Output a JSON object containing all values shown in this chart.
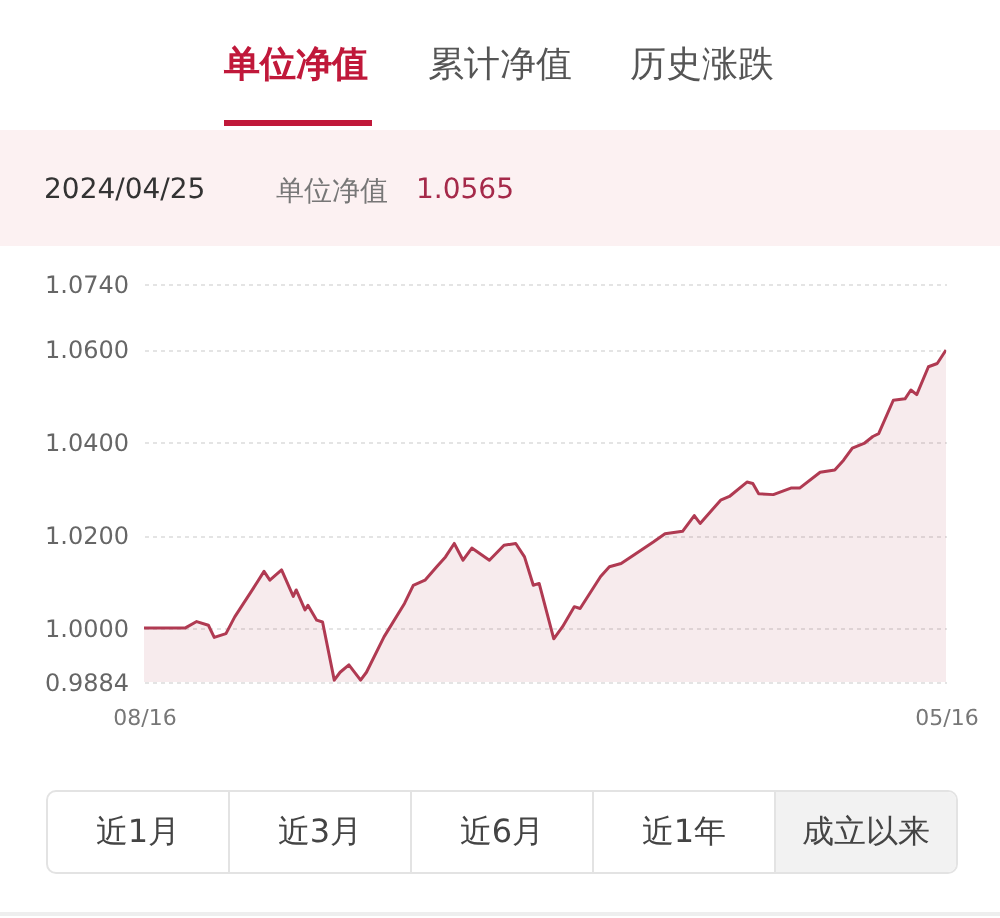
{
  "chart_data": {
    "type": "area",
    "annotations": [
      "单位净值",
      "累计净值",
      "历史涨跌",
      "2024/04/25",
      "单位净值",
      "1.0565",
      "近1月",
      "近3月",
      "近6月",
      "近1年",
      "成立以来"
    ],
    "x": [
      "2023-08-16",
      "2023-08-30",
      "2023-09-03",
      "2023-09-07",
      "2023-09-09",
      "2023-09-13",
      "2023-09-16",
      "2023-09-22",
      "2023-09-26",
      "2023-09-28",
      "2023-10-02",
      "2023-10-06",
      "2023-10-07",
      "2023-10-10",
      "2023-10-11",
      "2023-10-14",
      "2023-10-16",
      "2023-10-20",
      "2023-10-22",
      "2023-10-25",
      "2023-10-29",
      "2023-10-31",
      "2023-11-06",
      "2023-11-13",
      "2023-11-16",
      "2023-11-20",
      "2023-11-24",
      "2023-11-27",
      "2023-11-30",
      "2023-12-03",
      "2023-12-06",
      "2023-12-12",
      "2023-12-17",
      "2023-12-21",
      "2023-12-24",
      "2023-12-27",
      "2023-12-29",
      "2024-01-03",
      "2024-01-06",
      "2024-01-10",
      "2024-01-12",
      "2024-01-19",
      "2024-01-22",
      "2024-01-26",
      "2024-01-31",
      "2024-02-06",
      "2024-02-10",
      "2024-02-16",
      "2024-02-20",
      "2024-02-22",
      "2024-02-29",
      "2024-03-03",
      "2024-03-09",
      "2024-03-11",
      "2024-03-13",
      "2024-03-18",
      "2024-03-24",
      "2024-03-27",
      "2024-04-03",
      "2024-04-08",
      "2024-04-11",
      "2024-04-14",
      "2024-04-18",
      "2024-04-21",
      "2024-04-23",
      "2024-04-28",
      "2024-05-02",
      "2024-05-04",
      "2024-05-06",
      "2024-05-10",
      "2024-05-13",
      "2024-05-16"
    ],
    "series": [
      {
        "color": "#b03a52",
        "values": [
          1.0,
          1.0,
          1.0014,
          1.0006,
          0.998,
          0.9988,
          1.0024,
          1.0082,
          1.0122,
          1.0103,
          1.0125,
          1.0068,
          1.0082,
          1.0039,
          1.0049,
          1.0017,
          1.0013,
          0.9888,
          0.9905,
          0.9921,
          0.9888,
          0.9905,
          0.9981,
          1.0053,
          1.0092,
          1.0103,
          1.0132,
          1.0153,
          1.0182,
          1.0146,
          1.0172,
          1.0146,
          1.0178,
          1.0182,
          1.0153,
          1.0092,
          1.0096,
          0.9977,
          1.0003,
          1.0046,
          1.0042,
          1.0111,
          1.0132,
          1.0139,
          1.016,
          1.0185,
          1.0203,
          1.0208,
          1.0242,
          1.0225,
          1.0275,
          1.0283,
          1.0314,
          1.0311,
          1.0289,
          1.0287,
          1.0301,
          1.0301,
          1.0335,
          1.034,
          1.0361,
          1.0387,
          1.0397,
          1.0412,
          1.0418,
          1.049,
          1.0493,
          1.0512,
          1.0502,
          1.0562,
          1.0569,
          1.0598
        ]
      }
    ],
    "xlim": [
      "2023-08-16",
      "2024-05-16"
    ],
    "xticks": [
      {
        "value": "2023-08-16",
        "label": "08/16"
      },
      {
        "value": "2024-05-16",
        "label": "05/16"
      }
    ],
    "ylim": [
      0.9884,
      1.074
    ],
    "yticks": [
      {
        "value": 0.9884,
        "label": "0.9884"
      },
      {
        "value": 1.0,
        "label": "1.0000"
      },
      {
        "value": 1.02,
        "label": "1.0200"
      },
      {
        "value": 1.04,
        "label": "1.0400"
      },
      {
        "value": 1.06,
        "label": "1.0600"
      },
      {
        "value": 1.074,
        "label": "1.0740"
      }
    ],
    "grid": "y"
  }
}
